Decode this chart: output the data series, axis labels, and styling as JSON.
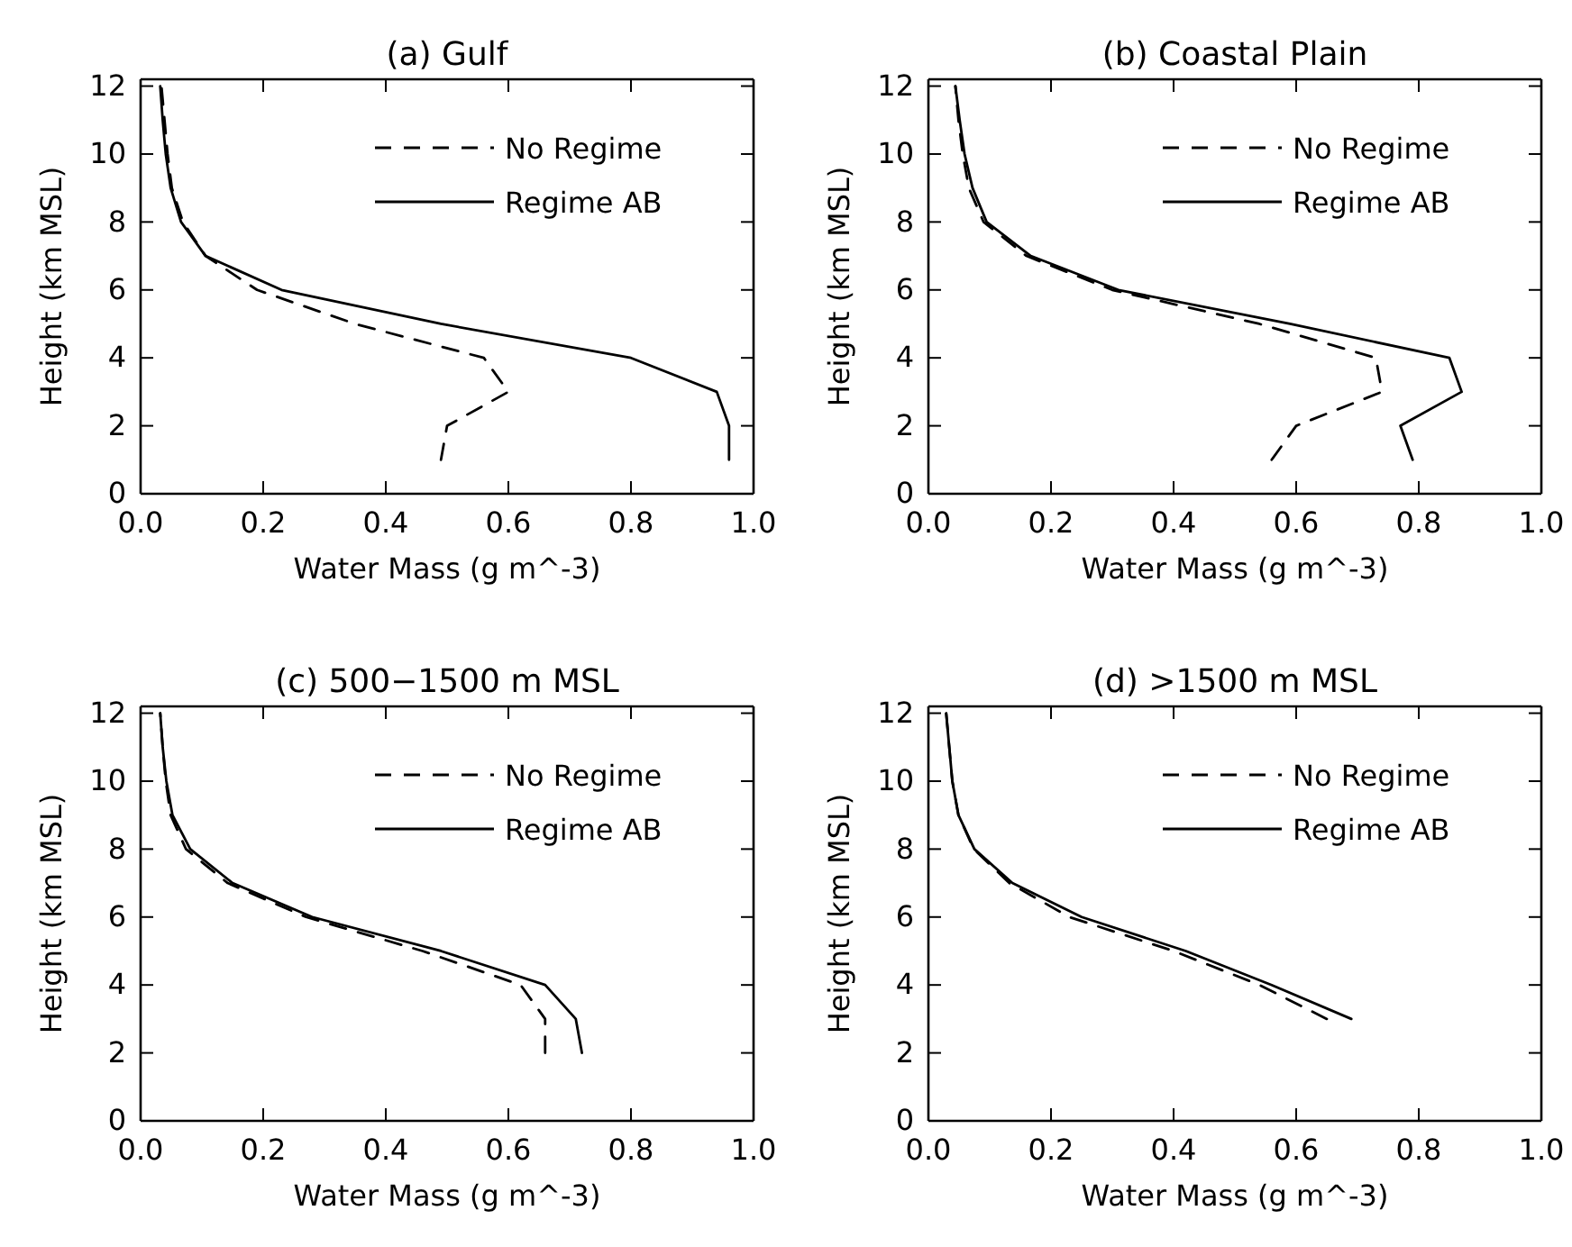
{
  "chart_data": [
    {
      "type": "line",
      "title": "(a) Gulf",
      "xlabel": "Water Mass (g m^-3)",
      "ylabel": "Height (km MSL)",
      "xlim": [
        0,
        1
      ],
      "ylim": [
        0,
        12.2
      ],
      "xticks": [
        {
          "value": 0,
          "label": "0.0"
        },
        {
          "value": 0.2,
          "label": "0.2"
        },
        {
          "value": 0.4,
          "label": "0.4"
        },
        {
          "value": 0.6,
          "label": "0.6"
        },
        {
          "value": 0.8,
          "label": "0.8"
        },
        {
          "value": 1,
          "label": "1.0"
        }
      ],
      "yticks": [
        0,
        2,
        4,
        6,
        8,
        10,
        12
      ],
      "legend": "top right",
      "grid": false,
      "series": [
        {
          "name": "No Regime",
          "color": "#000000",
          "line_style": "dashed",
          "x": [
            0.49,
            0.5,
            0.6,
            0.56,
            0.35,
            0.19,
            0.106,
            0.069,
            0.051,
            0.044,
            0.039,
            0.034
          ],
          "values": [
            1,
            2,
            3,
            4,
            5,
            6,
            7,
            8,
            9,
            10,
            11,
            12
          ]
        },
        {
          "name": "Regime AB",
          "color": "#000000",
          "line_style": "solid",
          "x": [
            0.96,
            0.96,
            0.94,
            0.8,
            0.49,
            0.23,
            0.106,
            0.066,
            0.049,
            0.041,
            0.036,
            0.032
          ],
          "values": [
            1,
            2,
            3,
            4,
            5,
            6,
            7,
            8,
            9,
            10,
            11,
            12
          ]
        }
      ]
    },
    {
      "type": "line",
      "title": "(b) Coastal Plain",
      "xlabel": "Water Mass (g m^-3)",
      "ylabel": "Height (km MSL)",
      "xlim": [
        0,
        1
      ],
      "ylim": [
        0,
        12.2
      ],
      "xticks": [
        {
          "value": 0,
          "label": "0.0"
        },
        {
          "value": 0.2,
          "label": "0.2"
        },
        {
          "value": 0.4,
          "label": "0.4"
        },
        {
          "value": 0.6,
          "label": "0.6"
        },
        {
          "value": 0.8,
          "label": "0.8"
        },
        {
          "value": 1,
          "label": "1.0"
        }
      ],
      "yticks": [
        0,
        2,
        4,
        6,
        8,
        10,
        12
      ],
      "legend": "top right",
      "grid": false,
      "series": [
        {
          "name": "No Regime",
          "color": "#000000",
          "line_style": "dashed",
          "x": [
            0.56,
            0.6,
            0.74,
            0.73,
            0.54,
            0.3,
            0.16,
            0.09,
            0.066,
            0.056,
            0.049,
            0.044
          ],
          "values": [
            1,
            2,
            3,
            4,
            5,
            6,
            7,
            8,
            9,
            10,
            11,
            12
          ]
        },
        {
          "name": "Regime AB",
          "color": "#000000",
          "line_style": "solid",
          "x": [
            0.79,
            0.77,
            0.87,
            0.85,
            0.59,
            0.31,
            0.167,
            0.095,
            0.072,
            0.059,
            0.051,
            0.044
          ],
          "values": [
            1,
            2,
            3,
            4,
            5,
            6,
            7,
            8,
            9,
            10,
            11,
            12
          ]
        }
      ]
    },
    {
      "type": "line",
      "title": "(c) 500−1500 m MSL",
      "xlabel": "Water Mass (g m^-3)",
      "ylabel": "Height (km MSL)",
      "xlim": [
        0,
        1
      ],
      "ylim": [
        0,
        12.2
      ],
      "xticks": [
        {
          "value": 0,
          "label": "0.0"
        },
        {
          "value": 0.2,
          "label": "0.2"
        },
        {
          "value": 0.4,
          "label": "0.4"
        },
        {
          "value": 0.6,
          "label": "0.6"
        },
        {
          "value": 0.8,
          "label": "0.8"
        },
        {
          "value": 1,
          "label": "1.0"
        }
      ],
      "yticks": [
        0,
        2,
        4,
        6,
        8,
        10,
        12
      ],
      "legend": "top right",
      "grid": false,
      "series": [
        {
          "name": "No Regime",
          "color": "#000000",
          "line_style": "dashed",
          "x": [
            0.66,
            0.66,
            0.62,
            0.46,
            0.27,
            0.142,
            0.074,
            0.049,
            0.041,
            0.036,
            0.032
          ],
          "values": [
            2,
            3,
            4,
            5,
            6,
            7,
            8,
            9,
            10,
            11,
            12
          ]
        },
        {
          "name": "Regime AB",
          "color": "#000000",
          "line_style": "solid",
          "x": [
            0.72,
            0.71,
            0.66,
            0.49,
            0.28,
            0.15,
            0.081,
            0.052,
            0.042,
            0.036,
            0.032
          ],
          "values": [
            2,
            3,
            4,
            5,
            6,
            7,
            8,
            9,
            10,
            11,
            12
          ]
        }
      ]
    },
    {
      "type": "line",
      "title": "(d) >1500 m MSL",
      "xlabel": "Water Mass (g m^-3)",
      "ylabel": "Height (km MSL)",
      "xlim": [
        0,
        1
      ],
      "ylim": [
        0,
        12.2
      ],
      "xticks": [
        {
          "value": 0,
          "label": "0.0"
        },
        {
          "value": 0.2,
          "label": "0.2"
        },
        {
          "value": 0.4,
          "label": "0.4"
        },
        {
          "value": 0.6,
          "label": "0.6"
        },
        {
          "value": 0.8,
          "label": "0.8"
        },
        {
          "value": 1,
          "label": "1.0"
        }
      ],
      "yticks": [
        0,
        2,
        4,
        6,
        8,
        10,
        12
      ],
      "legend": "top right",
      "grid": false,
      "series": [
        {
          "name": "No Regime",
          "color": "#000000",
          "line_style": "dashed",
          "x": [
            0.65,
            0.54,
            0.4,
            0.23,
            0.132,
            0.074,
            0.049,
            0.039,
            0.034,
            0.029
          ],
          "values": [
            3,
            4,
            5,
            6,
            7,
            8,
            9,
            10,
            11,
            12
          ]
        },
        {
          "name": "Regime AB",
          "color": "#000000",
          "line_style": "solid",
          "x": [
            0.69,
            0.56,
            0.42,
            0.25,
            0.137,
            0.075,
            0.049,
            0.039,
            0.034,
            0.029
          ],
          "values": [
            3,
            4,
            5,
            6,
            7,
            8,
            9,
            10,
            11,
            12
          ]
        }
      ]
    }
  ]
}
